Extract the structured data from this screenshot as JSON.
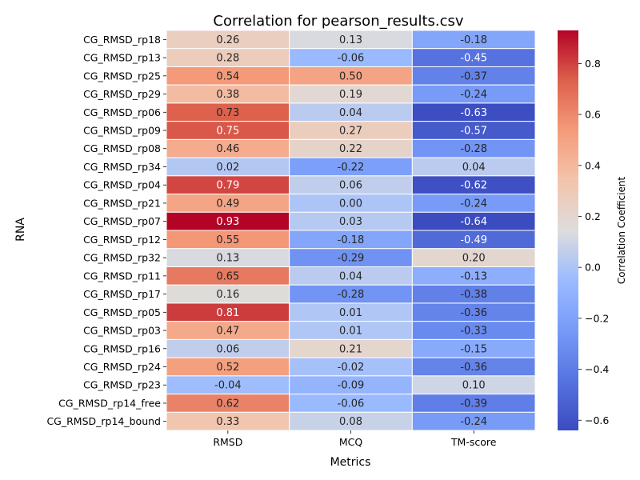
{
  "chart_data": {
    "type": "heatmap",
    "title": "Correlation for pearson_results.csv",
    "xlabel": "Metrics",
    "ylabel": "RNA",
    "colorbar_label": "Correlation Coefficient",
    "colormap": "coolwarm",
    "vmin": -0.64,
    "vmax": 0.93,
    "colorbar_ticks": [
      0.8,
      0.6,
      0.4,
      0.2,
      0.0,
      -0.2,
      -0.4,
      -0.6
    ],
    "colorbar_tick_labels": [
      "0.8",
      "0.6",
      "0.4",
      "0.2",
      "0.0",
      "−0.2",
      "−0.4",
      "−0.6"
    ],
    "columns": [
      "RMSD",
      "MCQ",
      "TM-score"
    ],
    "rows": [
      "CG_RMSD_rp18",
      "CG_RMSD_rp13",
      "CG_RMSD_rp25",
      "CG_RMSD_rp29",
      "CG_RMSD_rp06",
      "CG_RMSD_rp09",
      "CG_RMSD_rp08",
      "CG_RMSD_rp34",
      "CG_RMSD_rp04",
      "CG_RMSD_rp21",
      "CG_RMSD_rp07",
      "CG_RMSD_rp12",
      "CG_RMSD_rp32",
      "CG_RMSD_rp11",
      "CG_RMSD_rp17",
      "CG_RMSD_rp05",
      "CG_RMSD_rp03",
      "CG_RMSD_rp16",
      "CG_RMSD_rp24",
      "CG_RMSD_rp23",
      "CG_RMSD_rp14_free",
      "CG_RMSD_rp14_bound"
    ],
    "values": [
      [
        0.26,
        0.13,
        -0.18
      ],
      [
        0.28,
        -0.06,
        -0.45
      ],
      [
        0.54,
        0.5,
        -0.37
      ],
      [
        0.38,
        0.19,
        -0.24
      ],
      [
        0.73,
        0.04,
        -0.63
      ],
      [
        0.75,
        0.27,
        -0.57
      ],
      [
        0.46,
        0.22,
        -0.28
      ],
      [
        0.02,
        -0.22,
        0.04
      ],
      [
        0.79,
        0.06,
        -0.62
      ],
      [
        0.49,
        0.0,
        -0.24
      ],
      [
        0.93,
        0.03,
        -0.64
      ],
      [
        0.55,
        -0.18,
        -0.49
      ],
      [
        0.13,
        -0.29,
        0.2
      ],
      [
        0.65,
        0.04,
        -0.13
      ],
      [
        0.16,
        -0.28,
        -0.38
      ],
      [
        0.81,
        0.01,
        -0.36
      ],
      [
        0.47,
        0.01,
        -0.33
      ],
      [
        0.06,
        0.21,
        -0.15
      ],
      [
        0.52,
        -0.02,
        -0.36
      ],
      [
        -0.04,
        -0.09,
        0.1
      ],
      [
        0.62,
        -0.06,
        -0.39
      ],
      [
        0.33,
        0.08,
        -0.24
      ]
    ]
  }
}
